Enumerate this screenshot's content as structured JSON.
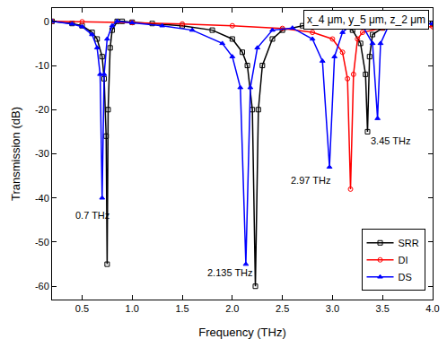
{
  "chart_data": {
    "type": "line",
    "x_label": "Frequency (THz)",
    "y_label": "Transmission (dB)",
    "xlim": [
      0.2,
      4.0
    ],
    "ylim": [
      -63,
      3
    ],
    "xticks": [
      0.5,
      {
        "value": 1,
        "label": "1.0"
      },
      1.5,
      {
        "value": 2,
        "label": "2.0"
      },
      2.5,
      {
        "value": 3,
        "label": "3.0"
      },
      3.5,
      {
        "value": 4,
        "label": "4.0"
      }
    ],
    "yticks": [
      -60,
      -50,
      -40,
      -30,
      -20,
      -10,
      0
    ],
    "grid": false,
    "legend": "lower right",
    "header_note": "x_4 μm, y_5 μm, z_2 μm",
    "annotations": [
      {
        "text": "0.7 THz",
        "x": 0.6,
        "y": -44
      },
      {
        "text": "2.135 THz",
        "x": 1.98,
        "y": -57
      },
      {
        "text": "2.97 THz",
        "x": 2.78,
        "y": -36
      },
      {
        "text": "3.45 THz",
        "x": 3.58,
        "y": -27
      }
    ],
    "series": [
      {
        "name": "SRR",
        "color": "#000000",
        "marker": "square-open",
        "x": [
          0.2,
          0.4,
          0.5,
          0.6,
          0.65,
          0.7,
          0.72,
          0.74,
          0.75,
          0.76,
          0.78,
          0.8,
          0.85,
          0.9,
          1.0,
          1.2,
          1.5,
          1.8,
          2.0,
          2.1,
          2.15,
          2.2,
          2.23,
          2.26,
          2.3,
          2.4,
          2.5,
          2.7,
          2.9,
          3.0,
          3.1,
          3.2,
          3.28,
          3.33,
          3.35,
          3.37,
          3.4,
          3.5,
          3.7,
          4.0
        ],
        "values": [
          0,
          -0.5,
          -1,
          -2.5,
          -4,
          -8,
          -13,
          -26,
          -55,
          -20,
          -6,
          -2,
          0,
          0,
          -0.2,
          -0.5,
          -1,
          -2,
          -4,
          -7,
          -10,
          -20,
          -60,
          -20,
          -10,
          -4,
          -2,
          -1,
          -0.5,
          -0.5,
          -1,
          -2,
          -5,
          -12,
          -25,
          -8,
          -3,
          -1.5,
          -0.8,
          -0.5
        ]
      },
      {
        "name": "DI",
        "color": "#ff0000",
        "marker": "circle-open",
        "x": [
          0.2,
          0.5,
          1.0,
          1.5,
          2.0,
          2.5,
          2.8,
          3.0,
          3.1,
          3.15,
          3.18,
          3.21,
          3.25,
          3.3,
          3.5,
          4.0
        ],
        "values": [
          0,
          -0.1,
          -0.3,
          -0.6,
          -1.0,
          -1.6,
          -2.5,
          -4,
          -7,
          -13,
          -38,
          -12,
          -4,
          -2.5,
          -1.5,
          -1.2
        ]
      },
      {
        "name": "DS",
        "color": "#0000ff",
        "marker": "triangle-up",
        "x": [
          0.2,
          0.4,
          0.5,
          0.6,
          0.65,
          0.68,
          0.7,
          0.72,
          0.75,
          0.8,
          0.85,
          1.0,
          1.3,
          1.6,
          1.9,
          2.0,
          2.08,
          2.135,
          2.18,
          2.25,
          2.4,
          2.6,
          2.8,
          2.9,
          2.97,
          3.02,
          3.1,
          3.2,
          3.3,
          3.4,
          3.45,
          3.48,
          3.55,
          3.7,
          4.0
        ],
        "values": [
          0,
          -0.6,
          -1.2,
          -3,
          -6,
          -12,
          -40,
          -12,
          -4,
          -1,
          0,
          -0.3,
          -1,
          -2,
          -5,
          -8,
          -15,
          -55,
          -15,
          -6,
          -2,
          -1.5,
          -4,
          -9,
          -33,
          -8,
          -2.5,
          -0.5,
          -1,
          -5,
          -22,
          -5,
          -1.5,
          -0.8,
          -0.5
        ]
      }
    ]
  }
}
